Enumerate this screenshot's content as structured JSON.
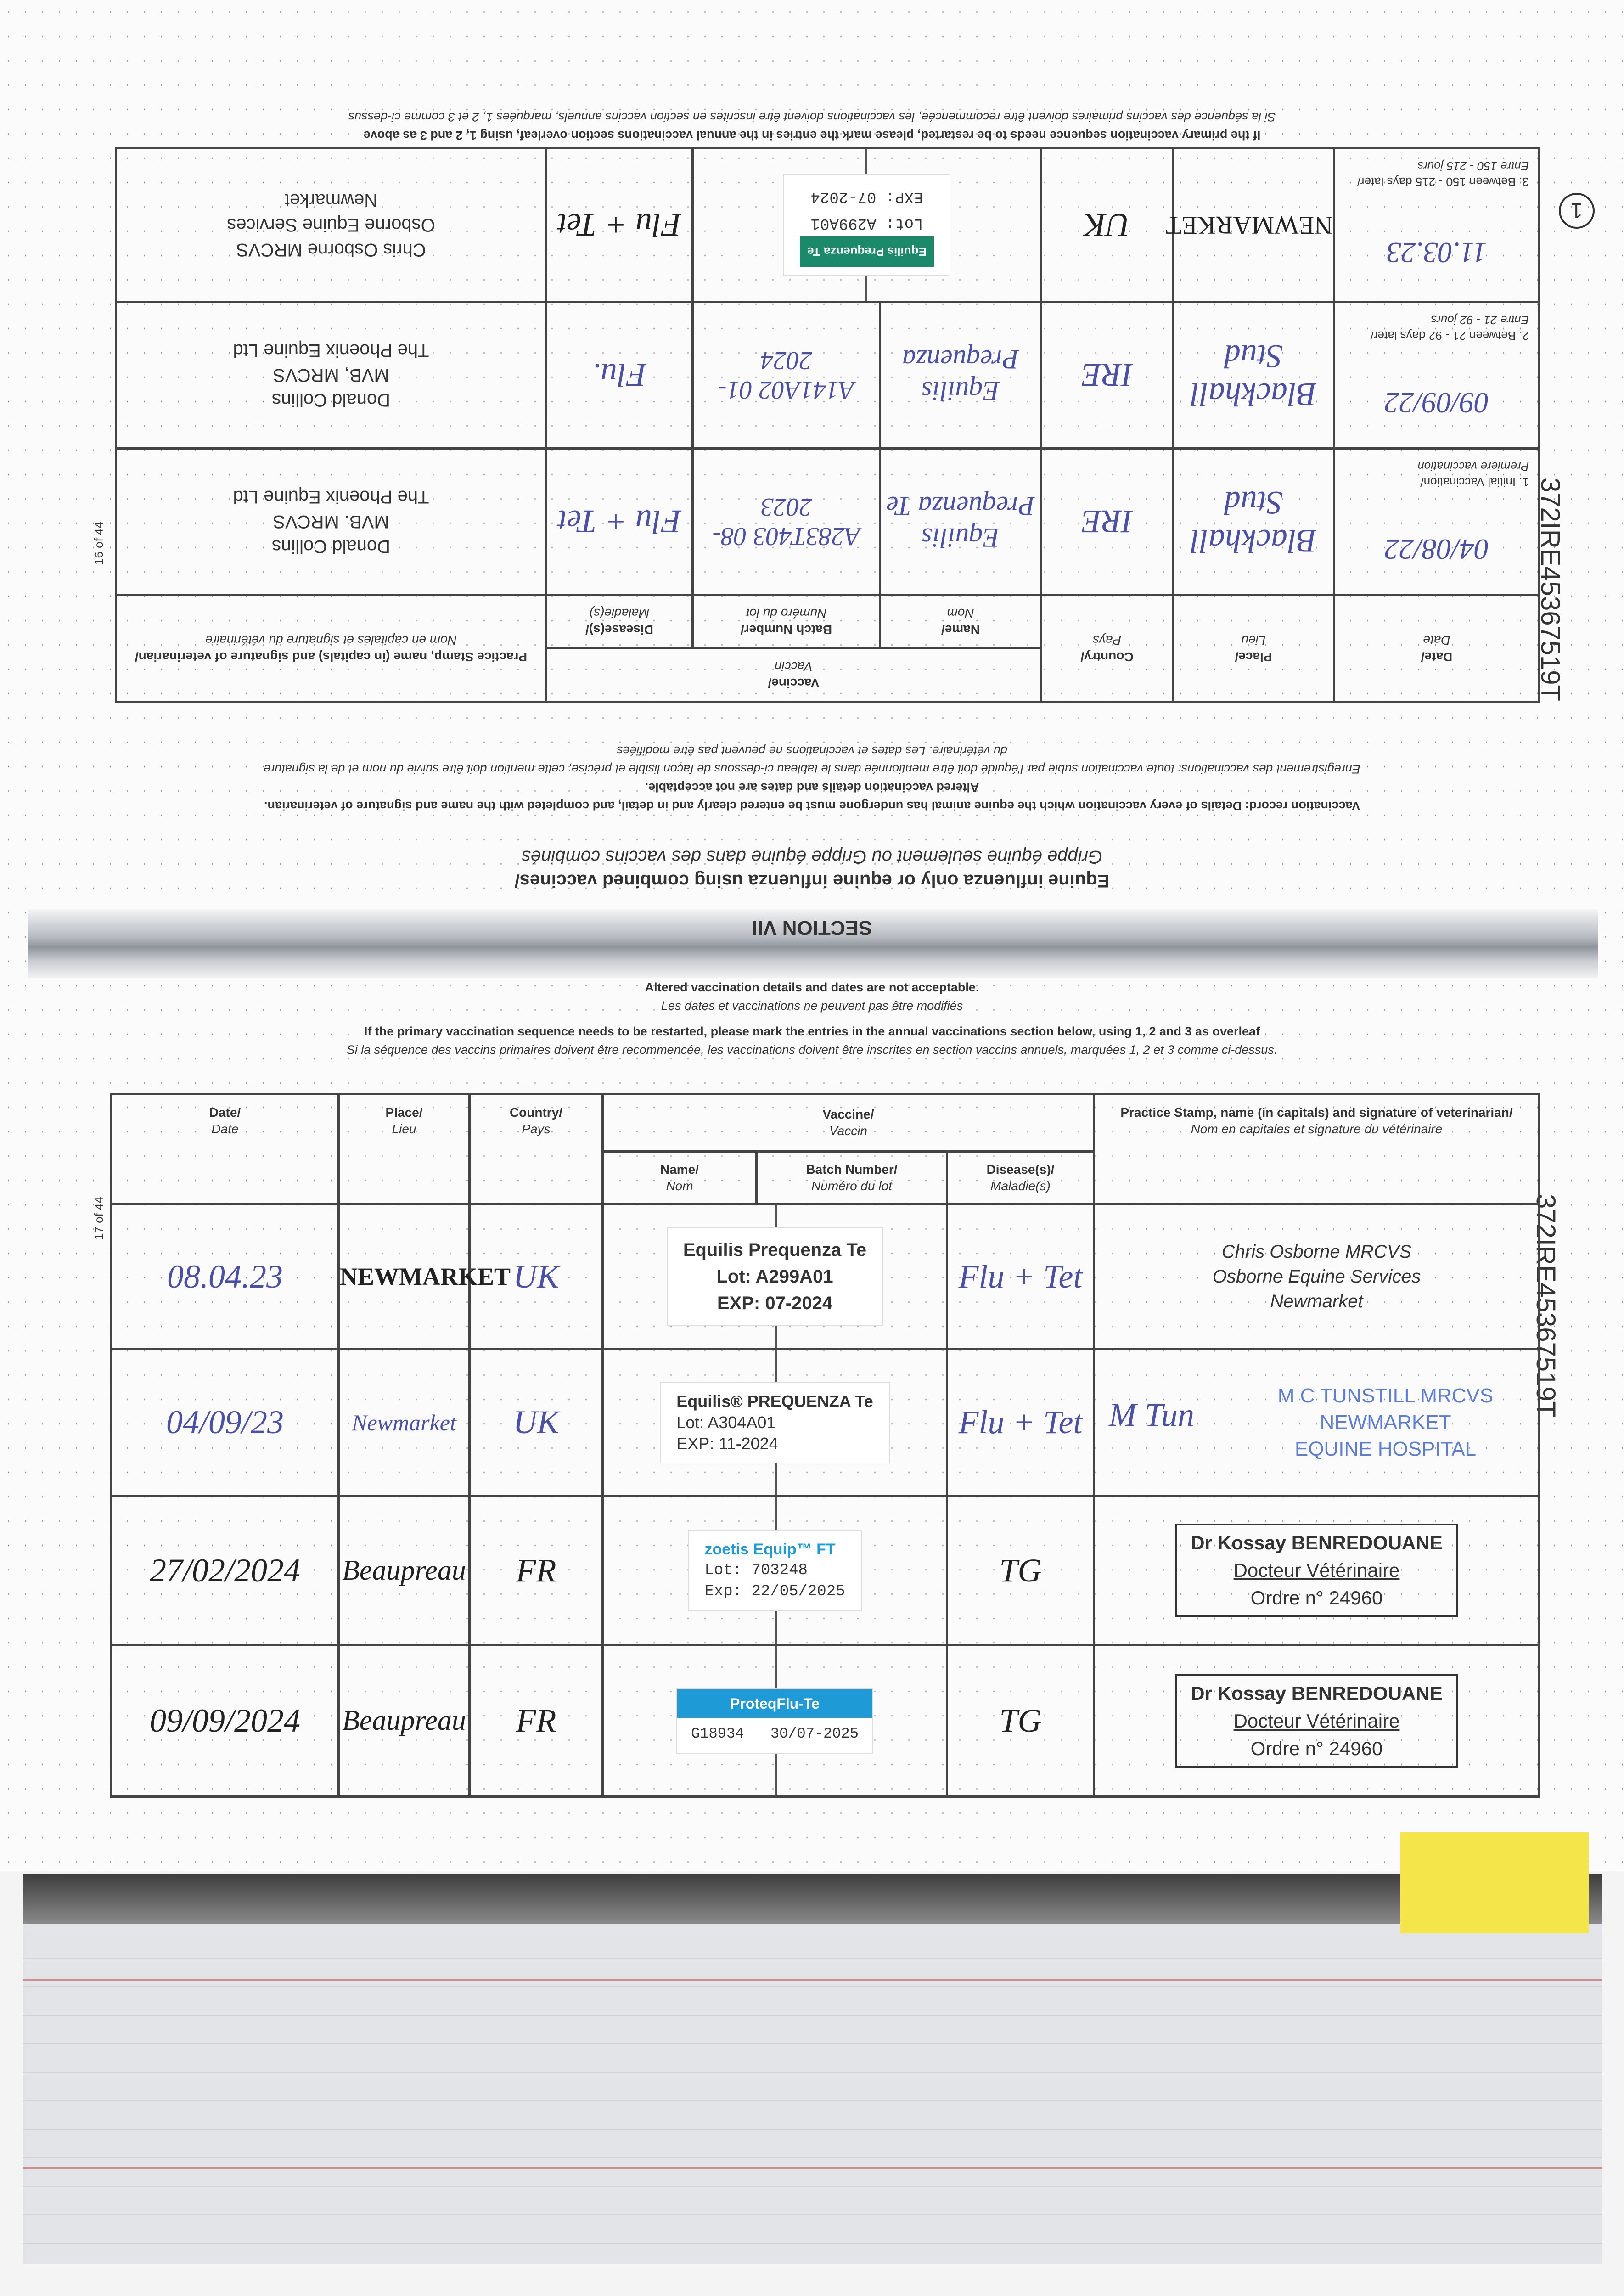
{
  "upper_page": {
    "top_note_en": "If the primary vaccination sequence needs to be restarted, please mark the entries in the annual vaccinations section overleaf, using 1, 2 and 3 as above",
    "top_note_fr": "Si la séquence des vaccins primaires doivent être recommencée, les vaccinations doivent être inscrites en section vaccins annuels, marquées 1, 2 et 3 comme ci-dessus",
    "circled_number": "1",
    "page_number": "16 of 44",
    "document_id": "372IRE45367519T",
    "headers": {
      "date": "Date/",
      "date_fr": "Date",
      "place": "Place/",
      "place_fr": "Lieu",
      "country": "Country/",
      "country_fr": "Pays",
      "vaccine": "Vaccine/",
      "vaccine_fr": "Vaccin",
      "name": "Name/",
      "name_fr": "Nom",
      "batch": "Batch Number/",
      "batch_fr": "Numéro du lot",
      "disease": "Disease(s)/",
      "disease_fr": "Maladie(s)",
      "stamp": "Practice Stamp, name (in capitals) and signature of veterinarian/",
      "stamp_fr": "Nom en capitales et signature du vétérinaire"
    },
    "rows": [
      {
        "label": "1. Initial Vaccination/",
        "label_fr": "Premiere vaccination",
        "date": "04/08/22",
        "place": "Blackhall Stud",
        "country": "IRE",
        "name": "Equilis Prequenza Te",
        "batch": "A283T403 08-2023",
        "disease": "Flu + Tet",
        "stamp_1": "Donald Collins",
        "stamp_2": "MVB. MRCVS",
        "stamp_3": "The Phoenix Equine Ltd"
      },
      {
        "label": "2. Between 21 - 92 days later/",
        "label_fr": "Entre 21 - 92 jours",
        "date": "09/09/22",
        "place": "Blackhall Stud",
        "country": "IRE",
        "name": "Equilis Prequenza",
        "batch": "A141A02 01-2024",
        "disease": "Flu.",
        "stamp_1": "Donald Collins",
        "stamp_2": "MVB, MRCVS",
        "stamp_3": "The Phoenix Equine Ltd"
      },
      {
        "label": "3. Between 150 - 215 days later/",
        "label_fr": "Entre 150 - 215 jours",
        "date": "11.03.23",
        "place": "NEWMARKET",
        "country": "UK",
        "sticker_brand": "Equilis Prequenza Te",
        "sticker_lot": "Lot: A299A01",
        "sticker_exp": "EXP: 07-2024",
        "disease": "Flu + Tet",
        "stamp_1": "Chris Osborne MRCVS",
        "stamp_2": "Osborne Equine Services",
        "stamp_3": "Newmarket"
      }
    ],
    "instructions": {
      "line1": "Vaccination record: Details of every vaccination which the equine animal has undergone must be entered clearly and in detail, and completed with the name and signature of veterinarian.",
      "line2": "Altered vaccination details and dates are not acceptable.",
      "line3": "Enregistrement des vaccinations: toute vaccination subie par l'équidé doit être mentionnée dans le tableau ci-dessous de façon lisible et précise; cette mention doit être suivie du nom et de la signature",
      "line4": "du vétérinaire. Les dates et vaccinations ne peuvent pas être modifiées"
    },
    "heading_en": "Equine influenza only or equine influenza using combined vaccines/",
    "heading_fr": "Grippe équine seulement ou Grippe équine dans des vaccins combinés",
    "section": "SECTION VII"
  },
  "lower_page": {
    "note1": "Altered vaccination details and dates are not acceptable.",
    "note2": "Les dates et vaccinations ne peuvent pas être modifiés",
    "note3": "If the primary vaccination sequence needs to be restarted, please mark the entries in the annual vaccinations section below, using 1, 2 and 3 as overleaf",
    "note4": "Si la séquence des vaccins primaires doivent être recommencée, les vaccinations doivent être inscrites en section vaccins annuels, marquées 1, 2 et 3 comme ci-dessus.",
    "page_number": "17 of 44",
    "document_id": "372IRE45367519T",
    "rows": [
      {
        "date": "08.04.23",
        "place": "NEWMARKET",
        "country": "UK",
        "sticker_1": "Equilis Prequenza Te",
        "sticker_2": "Lot: A299A01",
        "sticker_3": "EXP: 07-2024",
        "disease": "Flu + Tet",
        "stamp_1": "Chris Osborne MRCVS",
        "stamp_2": "Osborne Equine Services",
        "stamp_3": "Newmarket"
      },
      {
        "date": "04/09/23",
        "place": "Newmarket",
        "country": "UK",
        "sticker_1": "Equilis® PREQUENZA Te",
        "sticker_2": "Lot:   A304A01",
        "sticker_3": "EXP:   11-2024",
        "disease": "Flu + Tet",
        "signature": "M Tun",
        "stamp_1": "M C TUNSTILL MRCVS",
        "stamp_2": "NEWMARKET",
        "stamp_3": "EQUINE HOSPITAL"
      },
      {
        "date": "27/02/2024",
        "place": "Beaupreau",
        "country": "FR",
        "sticker_1": "zoetis Equip™ FT",
        "sticker_2": "Lot: 703248",
        "sticker_3": "Exp: 22/05/2025",
        "disease": "TG",
        "stamp_1": "Dr Kossay BENREDOUANE",
        "stamp_2": "Docteur Vétérinaire",
        "stamp_3": "Ordre n° 24960"
      },
      {
        "date": "09/09/2024",
        "place": "Beaupreau",
        "country": "FR",
        "sticker_1": "ProteqFlu-Te",
        "sticker_2": "G18934",
        "sticker_3": "30/07-2025",
        "disease": "TG",
        "stamp_1": "Dr Kossay BENREDOUANE",
        "stamp_2": "Docteur Vétérinaire",
        "stamp_3": "Ordre n° 24960"
      }
    ]
  },
  "colors": {
    "ink_blue": "#4a4fa8",
    "sticker_green": "#1b8a6b",
    "proteq_blue": "#1e9bd7",
    "sticky_note": "#f4e54a"
  }
}
